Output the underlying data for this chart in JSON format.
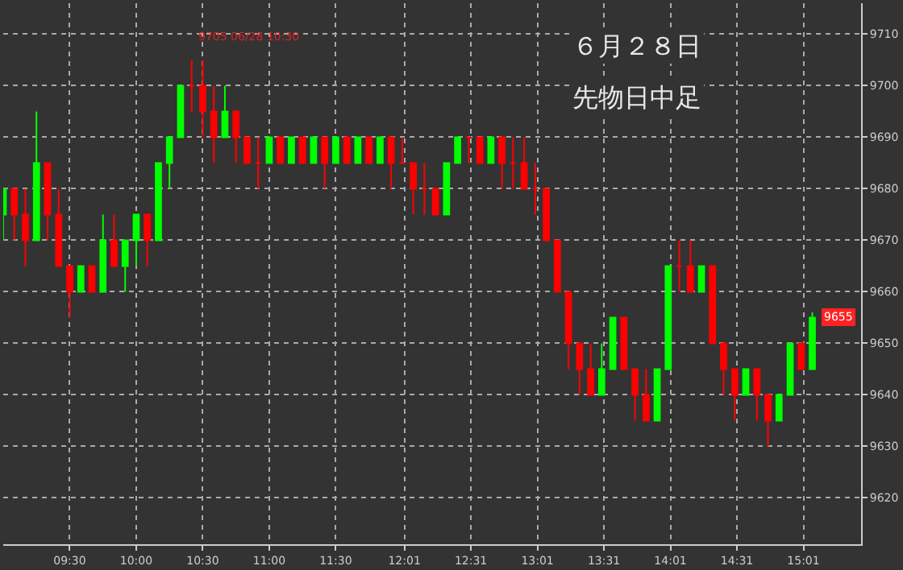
{
  "chart_data": {
    "type": "candlestick",
    "title": "６月２８日",
    "subtitle": "先物日中足",
    "x": [
      9.0,
      9.0833,
      9.1667,
      9.25,
      9.3333,
      9.4167,
      9.5,
      9.5833,
      9.6667,
      9.75,
      9.8333,
      9.9167,
      10.0,
      10.0833,
      10.1667,
      10.25,
      10.3333,
      10.4167,
      10.5,
      10.5833,
      10.6667,
      10.75,
      10.8333,
      10.9167,
      11.0,
      11.0833,
      11.1667,
      11.25,
      11.3333,
      11.4167,
      11.5,
      11.5833,
      11.6667,
      11.75,
      11.8333,
      11.9167,
      12.0,
      12.0833,
      12.1667,
      12.25,
      12.3333,
      12.4167,
      12.5,
      12.5833,
      12.6667,
      12.75,
      12.8333,
      12.9167,
      13.0,
      13.0833,
      13.1667,
      13.25,
      13.3333,
      13.4167,
      13.5,
      13.5833,
      13.6667,
      13.75,
      13.8333,
      13.9167,
      14.0,
      14.0833,
      14.1667,
      14.25,
      14.3333,
      14.4167,
      14.5,
      14.5833,
      14.6667,
      14.75,
      14.8333,
      14.9167,
      15.0,
      15.0833
    ],
    "ohlc": [
      [
        9675,
        9680,
        9670,
        9680
      ],
      [
        9680,
        9680,
        9670,
        9675
      ],
      [
        9675,
        9680,
        9665,
        9670
      ],
      [
        9670,
        9695,
        9670,
        9685
      ],
      [
        9685,
        9685,
        9670,
        9675
      ],
      [
        9675,
        9680,
        9665,
        9665
      ],
      [
        9665,
        9665,
        9655,
        9660
      ],
      [
        9660,
        9665,
        9660,
        9665
      ],
      [
        9665,
        9665,
        9660,
        9660
      ],
      [
        9660,
        9675,
        9660,
        9670
      ],
      [
        9670,
        9675,
        9665,
        9665
      ],
      [
        9665,
        9670,
        9660,
        9670
      ],
      [
        9670,
        9675,
        9665,
        9675
      ],
      [
        9675,
        9675,
        9665,
        9670
      ],
      [
        9670,
        9685,
        9670,
        9685
      ],
      [
        9685,
        9690,
        9680,
        9690
      ],
      [
        9690,
        9700,
        9690,
        9700
      ],
      [
        9700,
        9705,
        9695,
        9700
      ],
      [
        9700,
        9705,
        9690,
        9695
      ],
      [
        9695,
        9700,
        9685,
        9690
      ],
      [
        9690,
        9700,
        9690,
        9695
      ],
      [
        9695,
        9695,
        9685,
        9690
      ],
      [
        9690,
        9690,
        9685,
        9685
      ],
      [
        9685,
        9690,
        9680,
        9685
      ],
      [
        9685,
        9690,
        9685,
        9690
      ],
      [
        9690,
        9690,
        9685,
        9685
      ],
      [
        9685,
        9690,
        9685,
        9690
      ],
      [
        9690,
        9690,
        9685,
        9685
      ],
      [
        9685,
        9690,
        9685,
        9690
      ],
      [
        9690,
        9690,
        9680,
        9685
      ],
      [
        9685,
        9690,
        9685,
        9690
      ],
      [
        9690,
        9690,
        9685,
        9685
      ],
      [
        9685,
        9690,
        9685,
        9690
      ],
      [
        9690,
        9690,
        9685,
        9685
      ],
      [
        9685,
        9690,
        9685,
        9690
      ],
      [
        9690,
        9690,
        9680,
        9685
      ],
      [
        9685,
        9690,
        9685,
        9685
      ],
      [
        9685,
        9685,
        9675,
        9680
      ],
      [
        9680,
        9685,
        9675,
        9680
      ],
      [
        9680,
        9680,
        9675,
        9675
      ],
      [
        9675,
        9685,
        9675,
        9685
      ],
      [
        9685,
        9690,
        9685,
        9690
      ],
      [
        9690,
        9690,
        9685,
        9690
      ],
      [
        9690,
        9690,
        9685,
        9685
      ],
      [
        9685,
        9690,
        9685,
        9690
      ],
      [
        9690,
        9690,
        9680,
        9685
      ],
      [
        9685,
        9690,
        9680,
        9685
      ],
      [
        9685,
        9690,
        9680,
        9680
      ],
      [
        9680,
        9685,
        9675,
        9680
      ],
      [
        9680,
        9680,
        9670,
        9670
      ],
      [
        9670,
        9670,
        9660,
        9660
      ],
      [
        9660,
        9660,
        9645,
        9650
      ],
      [
        9650,
        9650,
        9640,
        9645
      ],
      [
        9645,
        9650,
        9640,
        9640
      ],
      [
        9640,
        9650,
        9640,
        9645
      ],
      [
        9645,
        9655,
        9645,
        9655
      ],
      [
        9655,
        9655,
        9645,
        9645
      ],
      [
        9645,
        9645,
        9635,
        9640
      ],
      [
        9640,
        9645,
        9635,
        9635
      ],
      [
        9635,
        9645,
        9635,
        9645
      ],
      [
        9645,
        9665,
        9645,
        9665
      ],
      [
        9665,
        9670,
        9660,
        9665
      ],
      [
        9665,
        9670,
        9660,
        9660
      ],
      [
        9660,
        9665,
        9660,
        9665
      ],
      [
        9665,
        9665,
        9650,
        9650
      ],
      [
        9650,
        9650,
        9640,
        9645
      ],
      [
        9645,
        9645,
        9635,
        9640
      ],
      [
        9640,
        9645,
        9640,
        9645
      ],
      [
        9645,
        9645,
        9635,
        9640
      ],
      [
        9640,
        9640,
        9630,
        9635
      ],
      [
        9635,
        9640,
        9635,
        9640
      ],
      [
        9640,
        9650,
        9640,
        9650
      ],
      [
        9650,
        9650,
        9645,
        9645
      ],
      [
        9645,
        9656,
        9645,
        9655
      ]
    ],
    "colors": [
      "#00ff00",
      "#ff0000",
      "#ff0000",
      "#00ff00",
      "#ff0000",
      "#ff0000",
      "#ff0000",
      "#00ff00",
      "#ff0000",
      "#00ff00",
      "#ff0000",
      "#00ff00",
      "#00ff00",
      "#ff0000",
      "#00ff00",
      "#00ff00",
      "#00ff00",
      "#ff0000",
      "#ff0000",
      "#ff0000",
      "#00ff00",
      "#ff0000",
      "#ff0000",
      "#ff0000",
      "#00ff00",
      "#ff0000",
      "#00ff00",
      "#ff0000",
      "#00ff00",
      "#ff0000",
      "#00ff00",
      "#ff0000",
      "#00ff00",
      "#ff0000",
      "#00ff00",
      "#ff0000",
      "#ff0000",
      "#ff0000",
      "#ff0000",
      "#ff0000",
      "#00ff00",
      "#00ff00",
      "#ff0000",
      "#ff0000",
      "#00ff00",
      "#ff0000",
      "#ff0000",
      "#ff0000",
      "#ff0000",
      "#ff0000",
      "#ff0000",
      "#ff0000",
      "#ff0000",
      "#ff0000",
      "#00ff00",
      "#00ff00",
      "#ff0000",
      "#ff0000",
      "#ff0000",
      "#00ff00",
      "#00ff00",
      "#ff0000",
      "#ff0000",
      "#00ff00",
      "#ff0000",
      "#ff0000",
      "#ff0000",
      "#00ff00",
      "#ff0000",
      "#ff0000",
      "#00ff00",
      "#00ff00",
      "#ff0000",
      "#00ff00"
    ],
    "xlim": [
      9.0,
      15.45
    ],
    "xticks": [
      {
        "value": 9.5,
        "label": "09:30"
      },
      {
        "value": 10.0,
        "label": "10:00"
      },
      {
        "value": 10.5,
        "label": "10:30"
      },
      {
        "value": 11.0,
        "label": "11:00"
      },
      {
        "value": 11.5,
        "label": "11:30"
      },
      {
        "value": 12.0167,
        "label": "12:01"
      },
      {
        "value": 12.5167,
        "label": "12:31"
      },
      {
        "value": 13.0167,
        "label": "13:01"
      },
      {
        "value": 13.5167,
        "label": "13:31"
      },
      {
        "value": 14.0167,
        "label": "14:01"
      },
      {
        "value": 14.5167,
        "label": "14:31"
      },
      {
        "value": 15.0167,
        "label": "15:01"
      }
    ],
    "ylim": [
      9611,
      9716
    ],
    "yticks": [
      9620,
      9630,
      9640,
      9650,
      9660,
      9670,
      9680,
      9690,
      9700,
      9710
    ],
    "grid": true,
    "annotations": [
      {
        "text": "9705 06/28 10:30",
        "x": 10.4167,
        "y": 9705
      },
      {
        "text": "9655",
        "x": 15.0833,
        "y": 9655
      }
    ]
  }
}
